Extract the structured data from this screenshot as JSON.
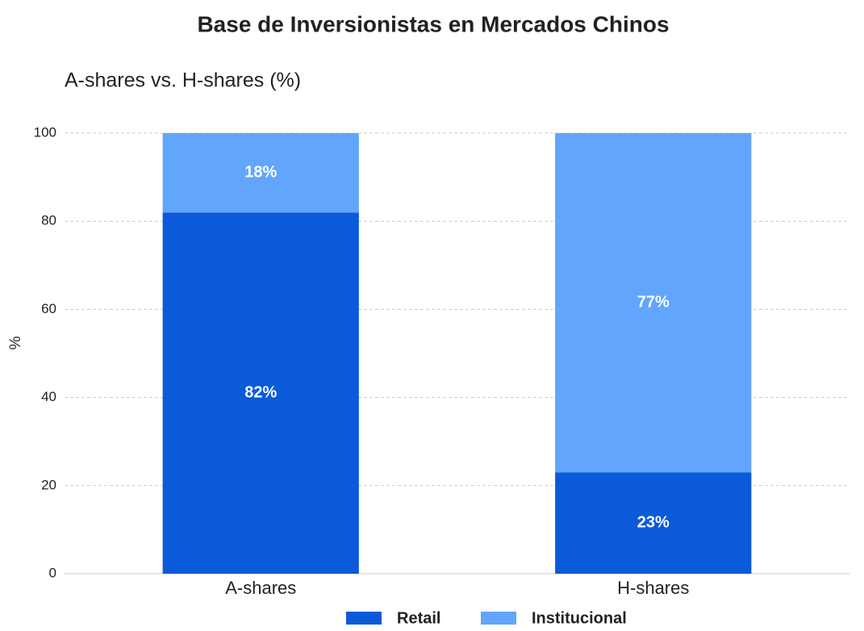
{
  "chart_data": {
    "type": "stacked_bar",
    "title": "Base de Inversionistas en Mercados Chinos",
    "subtitle": "A-shares vs. H-shares (%)",
    "y_label": "%",
    "categories": [
      "A-shares",
      "H-shares"
    ],
    "series": [
      {
        "name": "Retail",
        "color": "#0b5ad9",
        "values": [
          82,
          23
        ],
        "value_labels": [
          "82%",
          "23%"
        ]
      },
      {
        "name": "Institucional",
        "color": "#62a5fc",
        "values": [
          18,
          77
        ],
        "value_labels": [
          "18%",
          "77%"
        ]
      }
    ],
    "ylim": [
      0,
      100
    ],
    "yticks": [
      0,
      20,
      40,
      60,
      80,
      100
    ],
    "grid": true,
    "legend": "bottom"
  }
}
